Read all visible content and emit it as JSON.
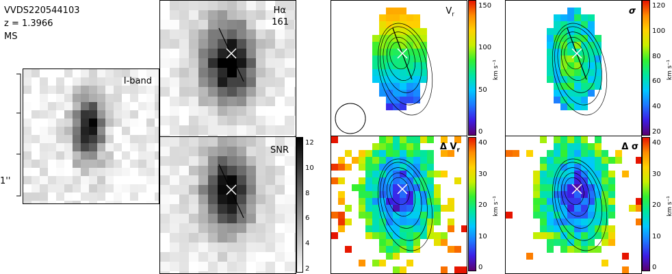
{
  "object": {
    "id": "VVDS220544103",
    "redshift": "z = 1.3966",
    "class": "MS"
  },
  "scale_bar": {
    "label": "1''"
  },
  "panels": {
    "iband": {
      "label": "I-band"
    },
    "halpha": {
      "label": "Hα",
      "value": "161"
    },
    "snr": {
      "label": "SNR"
    },
    "vr": {
      "label": "V",
      "label_sub": "r"
    },
    "sigma": {
      "label": "σ"
    },
    "dvr": {
      "label": "Δ V",
      "label_sub": "r"
    },
    "dsigma": {
      "label": "Δ σ"
    }
  },
  "colorbars": {
    "snr": {
      "ticks": [
        "12",
        "10",
        "8",
        "6",
        "4",
        "2"
      ],
      "unit": ""
    },
    "vr": {
      "ticks": [
        "150",
        "100",
        "50",
        "0"
      ],
      "unit": "km s⁻¹"
    },
    "sigma": {
      "ticks": [
        "120",
        "100",
        "80",
        "60",
        "40",
        "20"
      ],
      "unit": "km s⁻¹"
    },
    "dvr": {
      "ticks": [
        "40",
        "30",
        "20",
        "10",
        "0"
      ],
      "unit": "km s⁻¹"
    },
    "dsigma": {
      "ticks": [
        "40",
        "30",
        "20",
        "10",
        "0"
      ],
      "unit": "km s⁻¹"
    }
  },
  "colors": {
    "rainbow": [
      "#000000",
      "#5a006e",
      "#3c1ee6",
      "#1e78ff",
      "#00c8ff",
      "#00e6a0",
      "#32f032",
      "#c8f000",
      "#ffd200",
      "#ff8c00",
      "#e61400",
      "#ffffff"
    ],
    "grey": [
      "#ffffff",
      "#000000"
    ]
  }
}
